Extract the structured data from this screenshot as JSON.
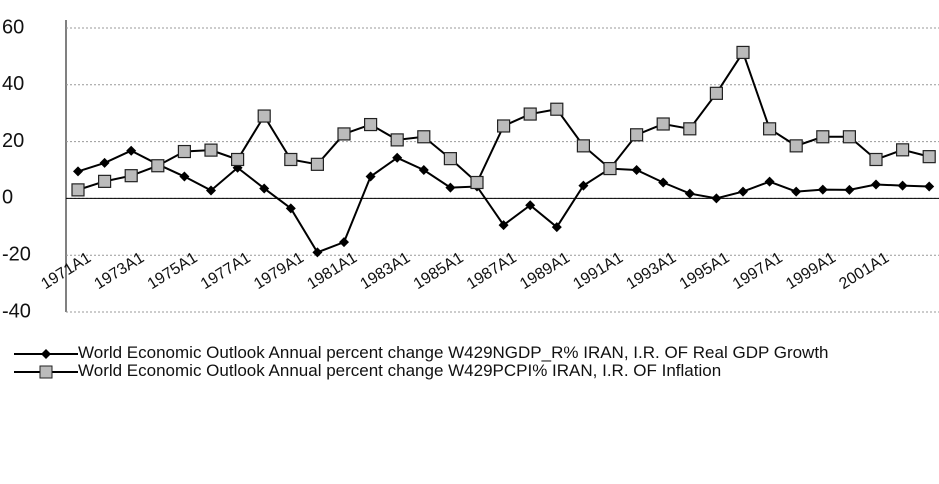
{
  "chart_data": {
    "type": "line",
    "categories": [
      "1971A1",
      null,
      "1973A1",
      null,
      "1975A1",
      null,
      "1977A1",
      null,
      "1979A1",
      null,
      "1981A1",
      null,
      "1983A1",
      null,
      "1985A1",
      null,
      "1987A1",
      null,
      "1989A1",
      null,
      "1991A1",
      null,
      "1993A1",
      null,
      "1995A1",
      null,
      "1997A1",
      null,
      "1999A1",
      null,
      "2001A1",
      null,
      null
    ],
    "series": [
      {
        "name": "World Economic Outlook Annual percent change W429NGDP_R% IRAN, I.R. OF Real GDP Growth",
        "color": "#000000",
        "marker": "diamond",
        "values": [
          9.5,
          12.5,
          16.8,
          12,
          7.7,
          2.8,
          10.8,
          3.5,
          -3.5,
          -19,
          -15.4,
          7.7,
          14.3,
          10,
          3.8,
          4.2,
          -9.4,
          -2.4,
          -10.1,
          4.5,
          10.5,
          10,
          5.6,
          1.7,
          0,
          2.4,
          5.9,
          2.4,
          3.1,
          3,
          4.9,
          4.5,
          4.2
        ]
      },
      {
        "name": "World Economic Outlook Annual percent change W429PCPI% IRAN, I.R. OF Inflation",
        "color": "#000000",
        "marker": "square",
        "values": [
          3,
          6,
          8,
          11.5,
          16.5,
          17,
          13.7,
          29,
          13.7,
          12,
          22.7,
          26,
          20.6,
          21.7,
          14,
          5.6,
          25.5,
          29.7,
          31.4,
          18.5,
          10.5,
          22.4,
          26.2,
          24.5,
          37,
          51.4,
          24.5,
          18.5,
          21.7,
          21.7,
          13.7,
          17.1,
          14.7
        ]
      }
    ],
    "ylim": [
      -40,
      60
    ],
    "yticks": [
      -40,
      -20,
      0,
      20,
      40,
      60
    ],
    "grid": true
  }
}
